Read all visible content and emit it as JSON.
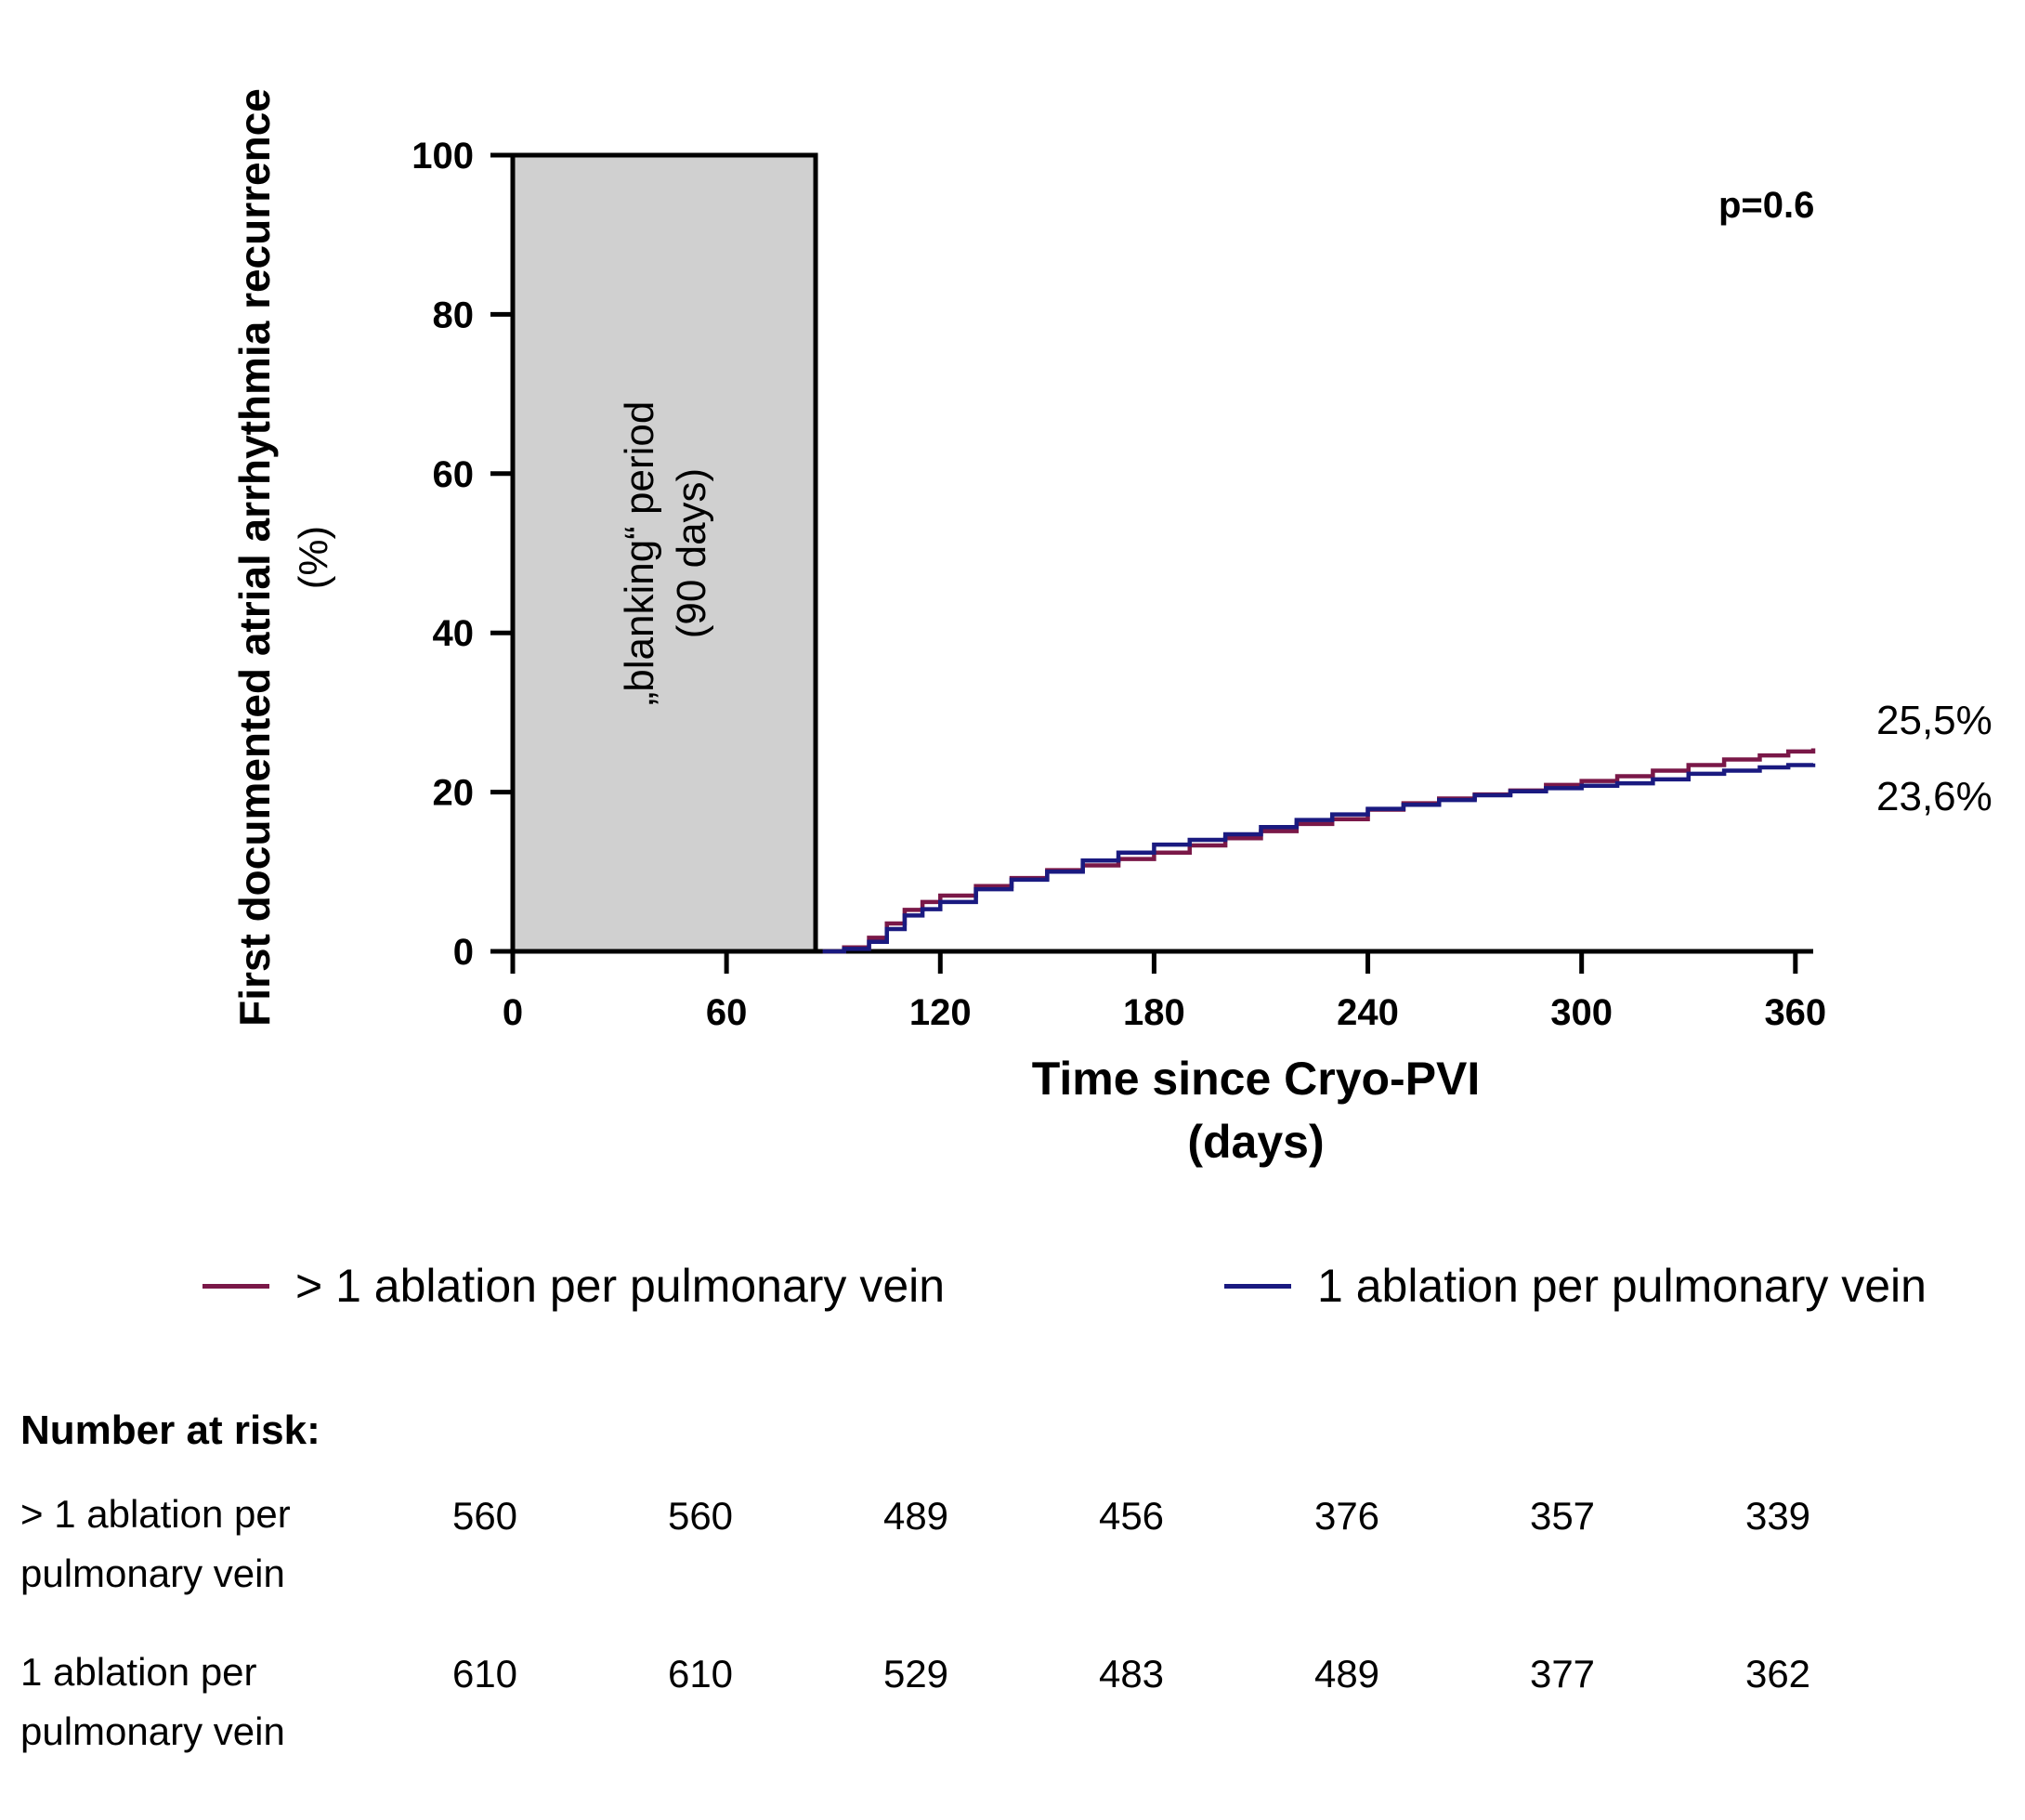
{
  "chart_data": {
    "type": "line",
    "title": "",
    "xlabel": "Time since Cryo-PVI",
    "xlabel_unit": "(days)",
    "ylabel": "First documented atrial arrhythmia recurrence",
    "ylabel_unit": "(%)",
    "xlim": [
      0,
      365
    ],
    "ylim": [
      0,
      100
    ],
    "x_ticks": [
      0,
      60,
      120,
      180,
      240,
      300,
      360
    ],
    "y_ticks": [
      0,
      20,
      40,
      60,
      80,
      100
    ],
    "grid": false,
    "blanking": {
      "x_start": 0,
      "x_end": 85,
      "label_line1": "„blanking“ period",
      "label_line2": "(90 days)",
      "color": "#d0d0d0"
    },
    "annotation_p": "p=0.6",
    "series": [
      {
        "name": "> 1 ablation per pulmonary vein",
        "color": "#7a1848",
        "end_label": "25,5%",
        "x": [
          87,
          93,
          100,
          105,
          110,
          115,
          120,
          130,
          140,
          150,
          160,
          170,
          180,
          190,
          200,
          210,
          220,
          230,
          240,
          250,
          260,
          270,
          280,
          290,
          300,
          310,
          320,
          330,
          340,
          350,
          358,
          365
        ],
        "y": [
          0,
          0.5,
          1.7,
          3.5,
          5.2,
          6.2,
          7.0,
          8.2,
          9.2,
          10.2,
          10.8,
          11.6,
          12.4,
          13.3,
          14.2,
          15.1,
          16.0,
          16.6,
          17.8,
          18.6,
          19.2,
          19.7,
          20.2,
          20.9,
          21.4,
          22.0,
          22.7,
          23.4,
          24.1,
          24.6,
          25.1,
          25.5
        ]
      },
      {
        "name": "1 ablation per pulmonary vein",
        "color": "#1a1a80",
        "end_label": "23,6%",
        "x": [
          87,
          93,
          100,
          105,
          110,
          115,
          120,
          130,
          140,
          150,
          160,
          170,
          180,
          190,
          200,
          210,
          220,
          230,
          240,
          250,
          260,
          270,
          280,
          290,
          300,
          310,
          320,
          330,
          340,
          350,
          358,
          365
        ],
        "y": [
          0,
          0.3,
          1.2,
          2.8,
          4.5,
          5.3,
          6.2,
          7.8,
          9.0,
          10.0,
          11.4,
          12.4,
          13.4,
          14.0,
          14.7,
          15.6,
          16.5,
          17.2,
          17.9,
          18.4,
          19.0,
          19.6,
          20.1,
          20.5,
          20.8,
          21.1,
          21.6,
          22.3,
          22.7,
          23.1,
          23.4,
          23.6
        ]
      }
    ]
  },
  "legend": {
    "items": [
      {
        "label": "> 1 ablation per pulmonary vein",
        "color": "#7a1848"
      },
      {
        "label": "1 ablation per pulmonary vein",
        "color": "#1a1a80"
      }
    ]
  },
  "risk_table": {
    "title": "Number at risk:",
    "rows": [
      {
        "label_line1": "> 1 ablation per",
        "label_line2": "pulmonary vein",
        "values": [
          "560",
          "560",
          "489",
          "456",
          "376",
          "357",
          "339"
        ]
      },
      {
        "label_line1": "1 ablation per",
        "label_line2": "pulmonary vein",
        "values": [
          "610",
          "610",
          "529",
          "483",
          "489",
          "377",
          "362"
        ]
      }
    ]
  }
}
